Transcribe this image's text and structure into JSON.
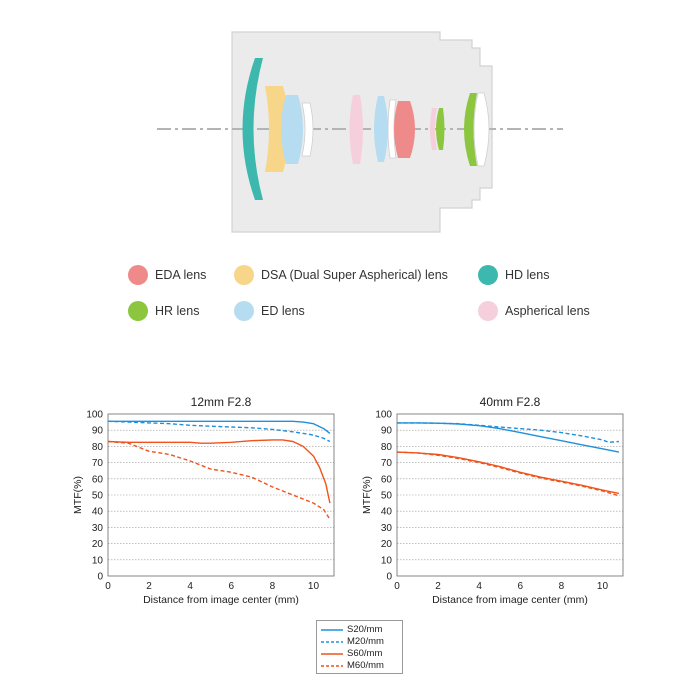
{
  "lens_legend": [
    {
      "label": "EDA lens",
      "color": "#ef8a8a"
    },
    {
      "label": "DSA (Dual Super Aspherical) lens",
      "color": "#f7d68a"
    },
    {
      "label": "HD lens",
      "color": "#3db8ae"
    },
    {
      "label": "HR lens",
      "color": "#8cc63f"
    },
    {
      "label": "ED lens",
      "color": "#b5dcf0"
    },
    {
      "label": "Aspherical lens",
      "color": "#f5d0dc"
    }
  ],
  "series_legend": [
    {
      "name": "S20/mm",
      "color": "#1e90dc",
      "dash": false
    },
    {
      "name": "M20/mm",
      "color": "#1e90dc",
      "dash": true
    },
    {
      "name": "S60/mm",
      "color": "#f0531c",
      "dash": false
    },
    {
      "name": "M60/mm",
      "color": "#f0531c",
      "dash": true
    }
  ],
  "chart_data": [
    {
      "type": "line",
      "title": "12mm F2.8",
      "xlabel": "Distance from image center (mm)",
      "ylabel": "MTF(%)",
      "xlim": [
        0,
        11
      ],
      "ylim": [
        0,
        100
      ],
      "xticks": [
        0,
        2,
        4,
        6,
        8,
        10
      ],
      "yticks": [
        0,
        10,
        20,
        30,
        40,
        50,
        60,
        70,
        80,
        90,
        100
      ],
      "grid": true,
      "series": [
        {
          "name": "S20/mm",
          "color": "#1e90dc",
          "dash": false,
          "x": [
            0,
            2,
            4,
            6,
            8,
            9,
            9.5,
            10,
            10.5,
            10.8
          ],
          "y": [
            95.5,
            95.5,
            95.5,
            95.5,
            95.5,
            95.5,
            95,
            94,
            91,
            88
          ]
        },
        {
          "name": "M20/mm",
          "color": "#1e90dc",
          "dash": true,
          "x": [
            0,
            1,
            2,
            3,
            4,
            5,
            6,
            7,
            8,
            9,
            10,
            10.5,
            10.8
          ],
          "y": [
            95.5,
            95,
            94.5,
            94,
            93,
            92.5,
            92,
            91.5,
            90.5,
            89,
            87,
            85,
            83
          ]
        },
        {
          "name": "S60/mm",
          "color": "#f0531c",
          "dash": false,
          "x": [
            0,
            1,
            2,
            3,
            4,
            4.5,
            5,
            6,
            7,
            8,
            8.5,
            9,
            9.5,
            10,
            10.3,
            10.6,
            10.8
          ],
          "y": [
            83,
            82.5,
            82.5,
            82.5,
            82.5,
            82,
            82,
            82.5,
            83.5,
            84,
            84,
            83,
            80,
            74,
            67,
            57,
            45
          ]
        },
        {
          "name": "M60/mm",
          "color": "#f0531c",
          "dash": true,
          "x": [
            0,
            1,
            2,
            3,
            4,
            5,
            6,
            7,
            8,
            9,
            10,
            10.5,
            10.8
          ],
          "y": [
            83,
            82,
            77,
            75,
            71,
            66,
            64,
            61,
            55,
            50,
            45,
            41,
            35
          ]
        }
      ]
    },
    {
      "type": "line",
      "title": "40mm F2.8",
      "xlabel": "Distance from image center (mm)",
      "ylabel": "MTF(%)",
      "xlim": [
        0,
        11
      ],
      "ylim": [
        0,
        100
      ],
      "xticks": [
        0,
        2,
        4,
        6,
        8,
        10
      ],
      "yticks": [
        0,
        10,
        20,
        30,
        40,
        50,
        60,
        70,
        80,
        90,
        100
      ],
      "grid": true,
      "series": [
        {
          "name": "S20/mm",
          "color": "#1e90dc",
          "dash": false,
          "x": [
            0,
            1,
            2,
            3,
            4,
            5,
            6,
            7,
            8,
            9,
            10,
            10.8
          ],
          "y": [
            94.5,
            94.5,
            94.3,
            93.8,
            92.8,
            91,
            88.5,
            86,
            83.5,
            81,
            78.5,
            76.5
          ]
        },
        {
          "name": "M20/mm",
          "color": "#1e90dc",
          "dash": true,
          "x": [
            0,
            1,
            2,
            3,
            4,
            5,
            6,
            7,
            8,
            9,
            10,
            10.3,
            10.8
          ],
          "y": [
            94.5,
            94.5,
            94.3,
            94,
            93,
            92,
            91,
            90,
            88.5,
            86.5,
            84,
            82.5,
            83
          ]
        },
        {
          "name": "S60/mm",
          "color": "#f0531c",
          "dash": false,
          "x": [
            0,
            1,
            2,
            3,
            4,
            5,
            6,
            7,
            8,
            9,
            10,
            10.8
          ],
          "y": [
            76.5,
            76,
            75,
            73,
            70.5,
            67.5,
            64,
            61,
            58.5,
            56,
            53,
            51
          ]
        },
        {
          "name": "M60/mm",
          "color": "#f0531c",
          "dash": true,
          "x": [
            0,
            1,
            2,
            3,
            4,
            5,
            6,
            7,
            8,
            9,
            10,
            10.8
          ],
          "y": [
            76.5,
            76,
            74.5,
            72.5,
            70,
            67,
            63.5,
            60.5,
            58,
            55.5,
            52.5,
            49.5
          ]
        }
      ]
    }
  ]
}
